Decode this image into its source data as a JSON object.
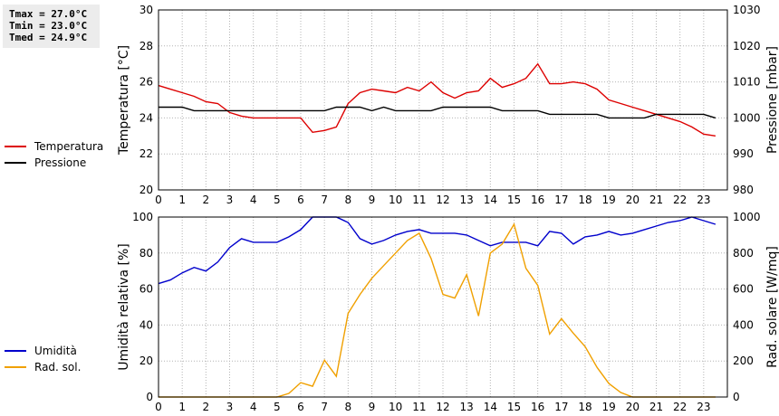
{
  "stats": {
    "tmax": "Tmax = 27.0°C",
    "tmin": "Tmin = 23.0°C",
    "tmed": "Tmed = 24.9°C"
  },
  "chart_data": [
    {
      "type": "line",
      "ylabel": "Temperatura [°C]",
      "y2label": "Pressione [mbar]",
      "xlim": [
        0,
        24
      ],
      "ylim": [
        20,
        30
      ],
      "y2lim": [
        980,
        1030
      ],
      "x_ticks": [
        "0",
        "1",
        "2",
        "3",
        "4",
        "5",
        "6",
        "7",
        "8",
        "9",
        "10",
        "11",
        "12",
        "13",
        "14",
        "15",
        "16",
        "17",
        "18",
        "19",
        "20",
        "21",
        "22",
        "23"
      ],
      "y_ticks": [
        "20",
        "22",
        "24",
        "26",
        "28",
        "30"
      ],
      "y2_ticks": [
        "980",
        "990",
        "1000",
        "1010",
        "1020",
        "1030"
      ],
      "grid": true,
      "legend_position": "left",
      "series": [
        {
          "name": "Temperatura",
          "axis": "left",
          "color": "#dd0000",
          "x": [
            0,
            0.5,
            1,
            1.5,
            2,
            2.5,
            3,
            3.5,
            4,
            4.5,
            5,
            5.5,
            6,
            6.5,
            7,
            7.5,
            8,
            8.5,
            9,
            9.5,
            10,
            10.5,
            11,
            11.5,
            12,
            12.5,
            13,
            13.5,
            14,
            14.5,
            15,
            15.5,
            16,
            16.5,
            17,
            17.5,
            18,
            18.5,
            19,
            19.5,
            20,
            20.5,
            21,
            21.5,
            22,
            22.5,
            23,
            23.5
          ],
          "values": [
            25.8,
            25.6,
            25.4,
            25.2,
            24.9,
            24.8,
            24.3,
            24.1,
            24.0,
            24.0,
            24.0,
            24.0,
            24.0,
            23.2,
            23.3,
            23.5,
            24.8,
            25.4,
            25.6,
            25.5,
            25.4,
            25.7,
            25.5,
            26.0,
            25.4,
            25.1,
            25.4,
            25.5,
            26.2,
            25.7,
            25.9,
            26.2,
            27.0,
            25.9,
            25.9,
            26.0,
            25.9,
            25.6,
            25.0,
            24.8,
            24.6,
            24.4,
            24.2,
            24.0,
            23.8,
            23.5,
            23.1,
            23.0
          ]
        },
        {
          "name": "Pressione",
          "axis": "right",
          "color": "#000000",
          "x": [
            0,
            0.5,
            1,
            1.5,
            2,
            2.5,
            3,
            3.5,
            4,
            4.5,
            5,
            5.5,
            6,
            6.5,
            7,
            7.5,
            8,
            8.5,
            9,
            9.5,
            10,
            10.5,
            11,
            11.5,
            12,
            12.5,
            13,
            13.5,
            14,
            14.5,
            15,
            15.5,
            16,
            16.5,
            17,
            17.5,
            18,
            18.5,
            19,
            19.5,
            20,
            20.5,
            21,
            21.5,
            22,
            22.5,
            23,
            23.5
          ],
          "values": [
            1003,
            1003,
            1003,
            1002,
            1002,
            1002,
            1002,
            1002,
            1002,
            1002,
            1002,
            1002,
            1002,
            1002,
            1002,
            1003,
            1003,
            1003,
            1002,
            1003,
            1002,
            1002,
            1002,
            1002,
            1003,
            1003,
            1003,
            1003,
            1003,
            1002,
            1002,
            1002,
            1002,
            1001,
            1001,
            1001,
            1001,
            1001,
            1000,
            1000,
            1000,
            1000,
            1001,
            1001,
            1001,
            1001,
            1001,
            1000
          ]
        }
      ]
    },
    {
      "type": "line",
      "ylabel": "Umidità relativa [%]",
      "y2label": "Rad. solare [W/mq]",
      "xlim": [
        0,
        24
      ],
      "ylim": [
        0,
        100
      ],
      "y2lim": [
        0,
        1000
      ],
      "x_ticks": [
        "0",
        "1",
        "2",
        "3",
        "4",
        "5",
        "6",
        "7",
        "8",
        "9",
        "10",
        "11",
        "12",
        "13",
        "14",
        "15",
        "16",
        "17",
        "18",
        "19",
        "20",
        "21",
        "22",
        "23"
      ],
      "y_ticks": [
        "0",
        "20",
        "40",
        "60",
        "80",
        "100"
      ],
      "y2_ticks": [
        "0",
        "200",
        "400",
        "600",
        "800",
        "1000"
      ],
      "grid": true,
      "legend_position": "left",
      "series": [
        {
          "name": "Umidità",
          "axis": "left",
          "color": "#0000cc",
          "x": [
            0,
            0.5,
            1,
            1.5,
            2,
            2.5,
            3,
            3.5,
            4,
            4.5,
            5,
            5.5,
            6,
            6.5,
            7,
            7.5,
            8,
            8.5,
            9,
            9.5,
            10,
            10.5,
            11,
            11.5,
            12,
            12.5,
            13,
            13.5,
            14,
            14.5,
            15,
            15.5,
            16,
            16.5,
            17,
            17.5,
            18,
            18.5,
            19,
            19.5,
            20,
            20.5,
            21,
            21.5,
            22,
            22.5,
            23,
            23.5
          ],
          "values": [
            63,
            65,
            69,
            72,
            70,
            75,
            83,
            88,
            86,
            86,
            86,
            89,
            93,
            100,
            100,
            100,
            97,
            88,
            85,
            87,
            90,
            92,
            93,
            91,
            91,
            91,
            90,
            87,
            84,
            86,
            86,
            86,
            84,
            92,
            91,
            85,
            89,
            90,
            92,
            90,
            91,
            93,
            95,
            97,
            98,
            100,
            98,
            96
          ]
        },
        {
          "name": "Rad. sol.",
          "axis": "right",
          "color": "#f0a000",
          "x": [
            0,
            0.5,
            1,
            1.5,
            2,
            2.5,
            3,
            3.5,
            4,
            4.5,
            5,
            5.5,
            6,
            6.5,
            7,
            7.5,
            8,
            8.5,
            9,
            9.5,
            10,
            10.5,
            11,
            11.5,
            12,
            12.5,
            13,
            13.5,
            14,
            14.5,
            15,
            15.5,
            16,
            16.5,
            17,
            17.5,
            18,
            18.5,
            19,
            19.5,
            20,
            20.5,
            21,
            21.5,
            22,
            22.5,
            23,
            23.5
          ],
          "values": [
            0,
            0,
            0,
            0,
            0,
            0,
            0,
            0,
            0,
            0,
            0,
            20,
            80,
            60,
            205,
            115,
            465,
            570,
            660,
            730,
            800,
            870,
            910,
            770,
            570,
            550,
            680,
            450,
            800,
            850,
            960,
            715,
            620,
            350,
            435,
            355,
            280,
            165,
            75,
            25,
            0,
            0,
            0,
            0,
            0,
            0,
            0,
            0
          ]
        }
      ]
    }
  ]
}
